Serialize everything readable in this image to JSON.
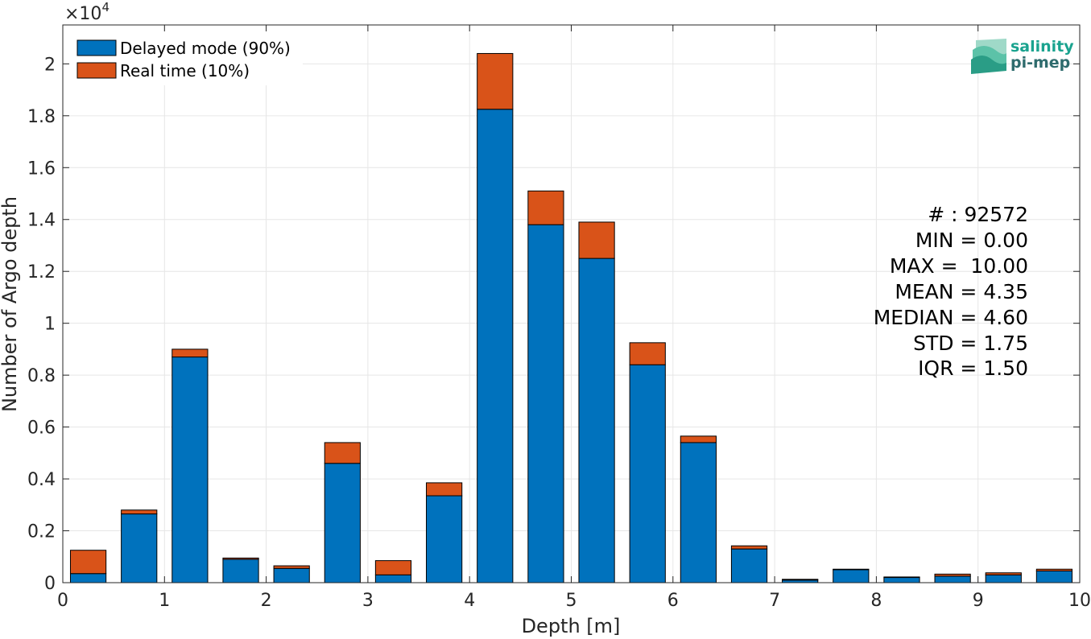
{
  "chart_data": {
    "type": "bar",
    "stacked": true,
    "xlabel": "Depth [m]",
    "ylabel": "Number of Argo depth",
    "y_multiplier_label": "×10",
    "y_multiplier_exponent": "4",
    "xlim": [
      0,
      10
    ],
    "ylim": [
      0,
      21500
    ],
    "xticks": [
      0,
      1,
      2,
      3,
      4,
      5,
      6,
      7,
      8,
      9,
      10
    ],
    "xtick_labels": [
      "0",
      "1",
      "2",
      "3",
      "4",
      "5",
      "6",
      "7",
      "8",
      "9",
      "10"
    ],
    "yticks": [
      0,
      2000,
      4000,
      6000,
      8000,
      10000,
      12000,
      14000,
      16000,
      18000,
      20000
    ],
    "ytick_labels": [
      "0",
      "0.2",
      "0.4",
      "0.6",
      "0.8",
      "1",
      "1.2",
      "1.4",
      "1.6",
      "1.8",
      "2"
    ],
    "grid": true,
    "legend_position": "top-left",
    "bar_width": 0.35,
    "x": [
      0.25,
      0.75,
      1.25,
      1.75,
      2.25,
      2.75,
      3.25,
      3.75,
      4.25,
      4.75,
      5.25,
      5.75,
      6.25,
      6.75,
      7.25,
      7.75,
      8.25,
      8.75,
      9.25,
      9.75
    ],
    "series": [
      {
        "name": "Delayed mode (90%)",
        "color": "#0072BD",
        "values": [
          350,
          2650,
          8700,
          900,
          550,
          4600,
          300,
          3350,
          18250,
          13800,
          12500,
          8400,
          5400,
          1300,
          100,
          500,
          200,
          250,
          300,
          450
        ]
      },
      {
        "name": "Real time (10%)",
        "color": "#D95319",
        "values": [
          900,
          150,
          300,
          50,
          100,
          800,
          550,
          500,
          2150,
          1300,
          1400,
          850,
          250,
          120,
          30,
          20,
          20,
          80,
          80,
          70
        ]
      }
    ],
    "annotations": [
      "# : 92572",
      "MIN = 0.00",
      "MAX =  10.00",
      "MEAN = 4.35",
      "MEDIAN = 4.60",
      "STD = 1.75",
      "IQR = 1.50"
    ]
  },
  "logo": {
    "line1": "salinity",
    "line2": "pi-mep",
    "color1": "#1aa38f",
    "color2": "#2e6b6d"
  }
}
